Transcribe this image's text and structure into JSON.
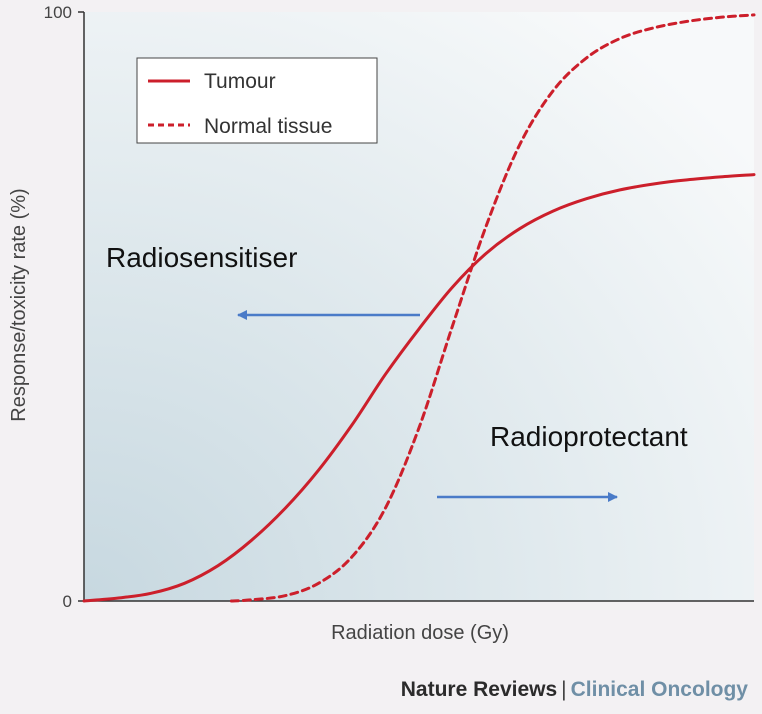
{
  "chart_data": {
    "type": "line",
    "title": "",
    "xlabel": "Radiation dose (Gy)",
    "ylabel": "Response/toxicity rate (%)",
    "ylim": [
      0,
      100
    ],
    "y_ticks": [
      "0",
      "100"
    ],
    "legend_position": "top-left",
    "series": [
      {
        "name": "Tumour",
        "style": "solid",
        "color": "#cc1f2b",
        "x": [
          0,
          0.05,
          0.1,
          0.15,
          0.2,
          0.25,
          0.3,
          0.35,
          0.4,
          0.45,
          0.5,
          0.55,
          0.6,
          0.65,
          0.7,
          0.75,
          0.8,
          0.85,
          0.9,
          0.95,
          1.0
        ],
        "values": [
          0.0,
          0.5,
          1.3,
          3.0,
          6.0,
          10.3,
          15.7,
          22.2,
          29.9,
          38.5,
          46.2,
          53.3,
          59.0,
          63.2,
          66.2,
          68.3,
          69.8,
          70.8,
          71.5,
          72.0,
          72.4
        ]
      },
      {
        "name": "Normal tissue",
        "style": "dashed",
        "color": "#cc1f2b",
        "x": [
          0.22,
          0.25,
          0.3,
          0.35,
          0.4,
          0.45,
          0.5,
          0.55,
          0.6,
          0.65,
          0.7,
          0.75,
          0.8,
          0.85,
          0.9,
          0.95,
          1.0
        ],
        "values": [
          0.0,
          0.2,
          0.9,
          3.0,
          7.5,
          15.8,
          29.4,
          46.7,
          63.6,
          77.4,
          86.6,
          92.2,
          95.5,
          97.3,
          98.4,
          99.1,
          99.5
        ]
      }
    ],
    "annotations": [
      {
        "text": "Radiosensitiser",
        "arrow": "left"
      },
      {
        "text": "Radioprotectant",
        "arrow": "right"
      }
    ]
  },
  "credit": {
    "publisher": "Nature Reviews",
    "separator": "|",
    "journal": "Clinical Oncology"
  }
}
